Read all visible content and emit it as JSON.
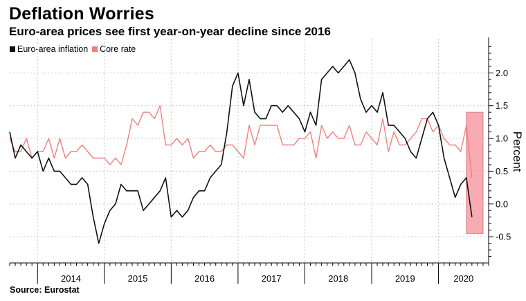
{
  "title": "Deflation Worries",
  "subtitle": "Euro-area prices see first year-on-year decline since 2016",
  "source": "Source: Eurostat",
  "chart_data": {
    "type": "line",
    "title": "Deflation Worries",
    "subtitle": "Euro-area prices see first year-on-year decline since 2016",
    "xlabel": "",
    "ylabel": "Percent",
    "ylim": [
      -0.9,
      2.5
    ],
    "yticks": [
      -0.5,
      0.0,
      0.5,
      1.0,
      1.5,
      2.0
    ],
    "ytick_labels": [
      "-0.5",
      "0.0",
      "0.5",
      "1.0",
      "1.5",
      "2.0"
    ],
    "x_start": "2013-08",
    "x_period": "monthly",
    "xlim_months": [
      0,
      86
    ],
    "year_labels": [
      "2014",
      "2015",
      "2016",
      "2017",
      "2018",
      "2019",
      "2020"
    ],
    "year_start_month_index": [
      5,
      17,
      29,
      41,
      53,
      65,
      77
    ],
    "grid": true,
    "legend_position": "top-left",
    "colors": {
      "inflation": "#111111",
      "core": "#f08080",
      "highlight": "#f7a3ab",
      "highlight_border": "#e0707c",
      "grid": "#c8c8c8"
    },
    "series": [
      {
        "name": "Euro-area inflation",
        "color": "#111111",
        "values": [
          1.1,
          0.7,
          0.9,
          0.8,
          0.7,
          0.8,
          0.5,
          0.7,
          0.5,
          0.5,
          0.4,
          0.3,
          0.3,
          0.4,
          0.3,
          -0.2,
          -0.6,
          -0.3,
          -0.1,
          0.0,
          0.3,
          0.2,
          0.2,
          0.2,
          -0.1,
          0.0,
          0.1,
          0.2,
          0.4,
          -0.2,
          -0.1,
          -0.2,
          -0.1,
          0.1,
          0.2,
          0.2,
          0.4,
          0.5,
          0.6,
          1.1,
          1.8,
          2.0,
          1.5,
          1.9,
          1.4,
          1.3,
          1.3,
          1.5,
          1.5,
          1.4,
          1.5,
          1.4,
          1.3,
          1.1,
          1.4,
          1.2,
          1.9,
          2.0,
          2.1,
          2.0,
          2.1,
          2.2,
          2.0,
          1.6,
          1.4,
          1.5,
          1.4,
          1.7,
          1.2,
          1.2,
          1.1,
          1.0,
          0.8,
          0.7,
          1.0,
          1.3,
          1.4,
          1.2,
          0.7,
          0.4,
          0.1,
          0.3,
          0.4,
          -0.2
        ]
      },
      {
        "name": "Core rate",
        "color": "#f08080",
        "values": [
          1.0,
          0.8,
          0.8,
          1.0,
          0.7,
          0.8,
          0.8,
          1.0,
          0.7,
          1.0,
          0.7,
          0.8,
          0.8,
          0.9,
          0.8,
          0.7,
          0.7,
          0.7,
          0.6,
          0.7,
          0.6,
          0.9,
          1.3,
          1.2,
          1.4,
          1.4,
          1.3,
          1.5,
          0.9,
          0.9,
          1.0,
          0.9,
          1.0,
          0.7,
          0.8,
          0.8,
          0.9,
          0.8,
          0.8,
          0.9,
          0.9,
          0.8,
          0.7,
          1.2,
          0.9,
          1.2,
          1.2,
          1.2,
          1.2,
          0.9,
          0.9,
          0.9,
          1.0,
          1.0,
          1.1,
          0.7,
          1.2,
          1.0,
          1.1,
          1.0,
          1.0,
          1.2,
          0.9,
          0.9,
          1.1,
          1.0,
          0.9,
          1.3,
          0.8,
          1.1,
          0.9,
          0.9,
          1.0,
          1.1,
          1.3,
          1.3,
          1.1,
          1.2,
          1.0,
          0.9,
          0.9,
          0.8,
          1.2,
          0.4
        ]
      }
    ],
    "highlight_region": {
      "from_month_index": 82,
      "to_month_index": 85,
      "ymin": -0.45,
      "ymax": 1.4
    }
  }
}
